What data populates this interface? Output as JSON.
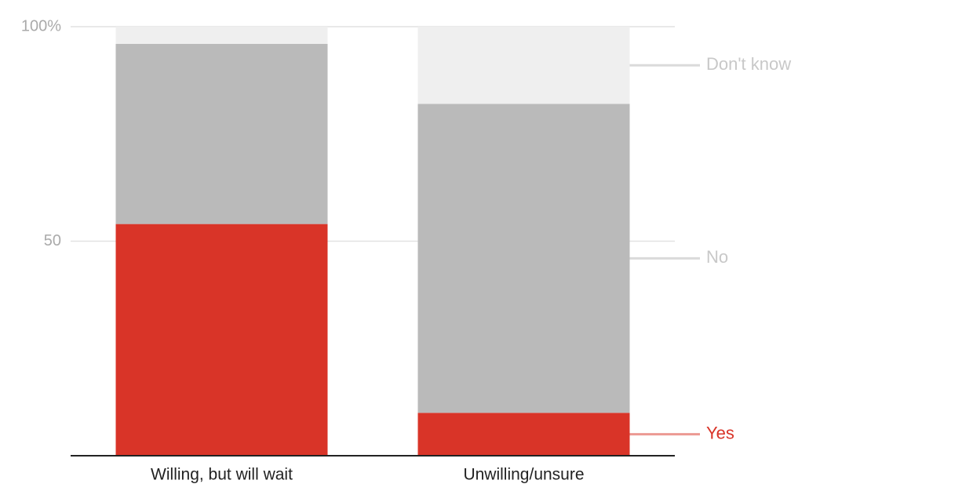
{
  "chart_data": {
    "type": "stacked-bar",
    "categories": [
      "Willing, but will wait",
      "Unwilling/unsure"
    ],
    "series": [
      {
        "name": "Yes",
        "color": "#d93428",
        "values": [
          54,
          10
        ]
      },
      {
        "name": "No",
        "color": "#bababa",
        "values": [
          42,
          72
        ]
      },
      {
        "name": "Don't know",
        "color": "#efefef",
        "values": [
          4,
          18
        ]
      }
    ],
    "ylim": [
      0,
      100
    ],
    "yticks": [
      50,
      {
        "value": 100,
        "label": "100%"
      }
    ],
    "grid": true
  }
}
